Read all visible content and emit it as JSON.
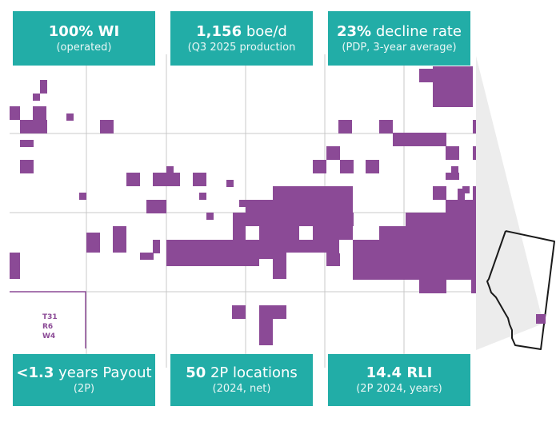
{
  "kpis": [
    {
      "value": "100% WI",
      "unit": "",
      "sub": "(operated)"
    },
    {
      "value": "1,156",
      "unit": " boe/d",
      "sub": "(Q3 2025 production"
    },
    {
      "value": "23%",
      "unit": " decline rate",
      "sub": "(PDP, 3-year average)"
    },
    {
      "value": "<1.3",
      "unit": " years Payout",
      "sub": "(2P)"
    },
    {
      "value": "50",
      "unit": " 2P locations",
      "sub": "(2024, net)"
    },
    {
      "value": "14.4 RLI",
      "unit": "",
      "sub": "(2P 2024, years)"
    }
  ],
  "township_label": {
    "line1": "T31",
    "line2": "R6",
    "line3": "W4"
  },
  "colors": {
    "kpi": "#22ada7",
    "parcel": "#8b4a96",
    "grid": "#c8c8c8",
    "inset_fill": "#ececec"
  },
  "inset": {
    "region": "Alberta",
    "marker": "property location"
  }
}
